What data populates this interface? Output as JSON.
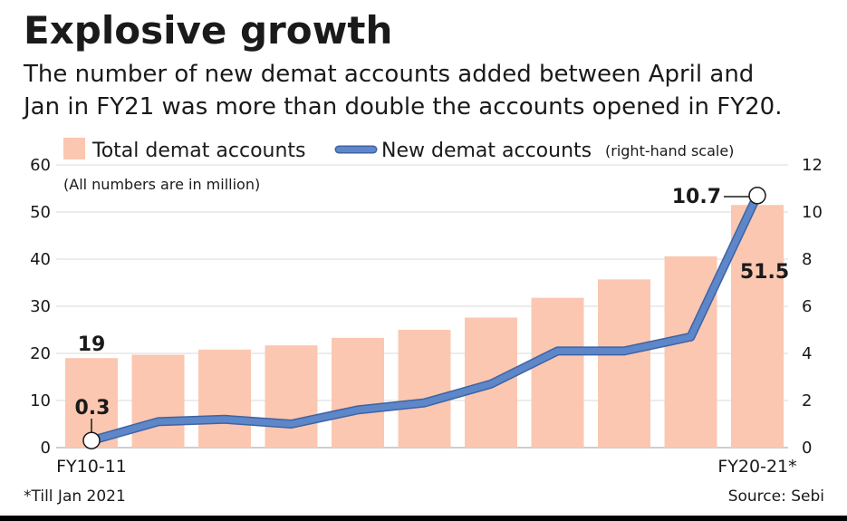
{
  "colors": {
    "bar": "#fbc7b1",
    "line": "#5d87c9",
    "line_outline": "#3f63a3",
    "grid": "#e6e6e6",
    "text": "#1a1a1a",
    "bottom_rule": "#000000"
  },
  "chart_data": {
    "type": "bar",
    "title": "Explosive growth",
    "subtitle_lines": [
      "The number of new demat accounts added between April and",
      "Jan in FY21 was more than double the accounts opened in FY20."
    ],
    "note": "(All numbers are in million)",
    "legend": {
      "bars_label": "Total demat accounts",
      "line_label": "New demat accounts",
      "line_suffix": "(right-hand scale)",
      "placement": "top"
    },
    "categories": [
      "FY10-11",
      "",
      "",
      "",
      "",
      "",
      "",
      "",
      "",
      "",
      "FY20-21*"
    ],
    "series": [
      {
        "name": "Total demat accounts",
        "type": "bar",
        "axis": "left",
        "values": [
          19,
          19.7,
          20.8,
          21.7,
          23.3,
          25.0,
          27.6,
          31.8,
          35.7,
          40.6,
          51.5
        ]
      },
      {
        "name": "New demat accounts",
        "type": "line",
        "axis": "right",
        "values": [
          0.3,
          1.1,
          1.2,
          1.0,
          1.6,
          1.9,
          2.7,
          4.1,
          4.1,
          4.7,
          10.7
        ]
      }
    ],
    "y_left": {
      "ylim": [
        0,
        60
      ],
      "ticks": [
        0,
        10,
        20,
        30,
        40,
        50,
        60
      ]
    },
    "y_right": {
      "ylim": [
        0,
        12
      ],
      "ticks": [
        0,
        2,
        4,
        6,
        8,
        10,
        12
      ]
    },
    "grid": true,
    "annotations": {
      "first_bar": "19",
      "last_bar": "51.5",
      "first_point": "0.3",
      "last_point": "10.7"
    },
    "footnote": "*Till Jan 2021",
    "source": "Source: Sebi"
  }
}
